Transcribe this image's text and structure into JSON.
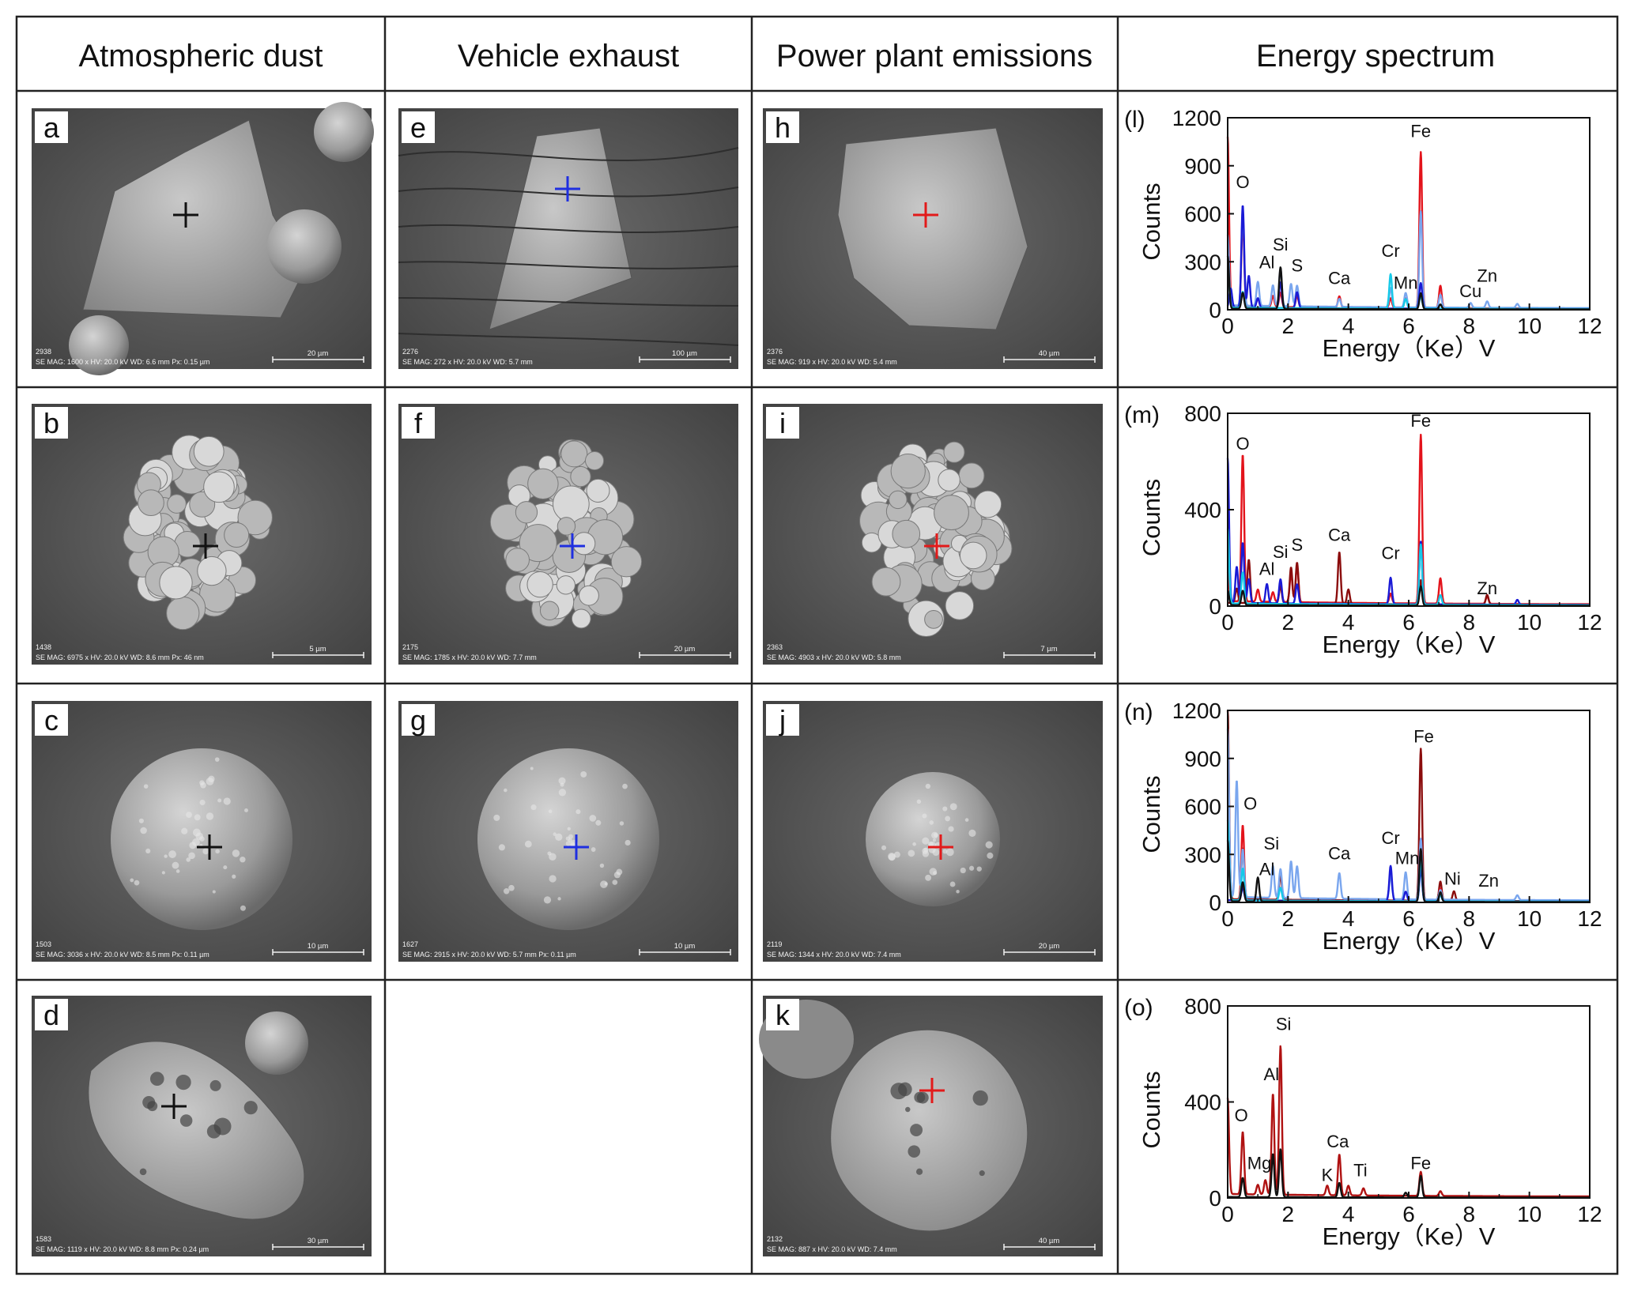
{
  "headers": [
    "Atmospheric dust",
    "Vehicle exhaust",
    "Power plant emissions",
    "Energy spectrum"
  ],
  "colors": {
    "grid": "#222222",
    "cross_dust": "#111111",
    "cross_vehicle": "#1f2fe0",
    "cross_power": "#e21a1a",
    "sem_bg": "#5c5c5c"
  },
  "panels": [
    {
      "id": "a",
      "col": 0,
      "row": 0,
      "shape": "angular",
      "cross": "dust",
      "number": "2938",
      "meta": "SE MAG: 1600 x HV: 20.0 kV  WD: 6.6 mm  Px: 0.15 µm",
      "scale": "20 µm"
    },
    {
      "id": "b",
      "col": 0,
      "row": 1,
      "shape": "cluster",
      "cross": "dust",
      "number": "1438",
      "meta": "SE MAG: 6975 x HV: 20.0 kV  WD: 8.6 mm  Px: 46 nm",
      "scale": "5 µm"
    },
    {
      "id": "c",
      "col": 0,
      "row": 2,
      "shape": "sphere",
      "cross": "dust",
      "number": "1503",
      "meta": "SE MAG: 3036 x HV: 20.0 kV  WD: 8.5 mm  Px: 0.11 µm",
      "scale": "10 µm"
    },
    {
      "id": "d",
      "col": 0,
      "row": 3,
      "shape": "porous",
      "cross": "dust",
      "number": "1583",
      "meta": "SE  MAG: 1119 x  HV: 20.0 kV   WD: 8.8 mm   Px: 0.24 µm",
      "scale": "30 µm"
    },
    {
      "id": "e",
      "col": 1,
      "row": 0,
      "shape": "triangle",
      "cross": "vehicle",
      "number": "2276",
      "meta": "SE MAG: 272 x HV: 20.0 kV  WD: 5.7 mm",
      "scale": "100 µm"
    },
    {
      "id": "f",
      "col": 1,
      "row": 1,
      "shape": "cluster",
      "cross": "vehicle",
      "number": "2175",
      "meta": "SE MAG: 1785 x HV: 20.0 kV  WD: 7.7 mm",
      "scale": "20 µm"
    },
    {
      "id": "g",
      "col": 1,
      "row": 2,
      "shape": "sphere",
      "cross": "vehicle",
      "number": "1627",
      "meta": "SE MAG: 2915 x HV: 20.0 kV  WD: 5.7 mm  Px: 0.11 µm",
      "scale": "10 µm"
    },
    {
      "id": "h",
      "col": 2,
      "row": 0,
      "shape": "block",
      "cross": "power",
      "number": "2376",
      "meta": "SE MAG: 919 x HV: 20.0 kV  WD: 5.4 mm",
      "scale": "40 µm"
    },
    {
      "id": "i",
      "col": 2,
      "row": 1,
      "shape": "cluster",
      "cross": "power",
      "number": "2363",
      "meta": "SE MAG: 4903 x HV: 20.0 kV  WD: 5.8 mm",
      "scale": "7 µm"
    },
    {
      "id": "j",
      "col": 2,
      "row": 2,
      "shape": "sphere",
      "cross": "power",
      "number": "2119",
      "meta": "SE MAG: 1344 x HV: 20.0 kV  WD: 7.4 mm",
      "scale": "20 µm"
    },
    {
      "id": "k",
      "col": 2,
      "row": 3,
      "shape": "porous",
      "cross": "power",
      "number": "2132",
      "meta": "SE MAG: 887 x HV: 20.0 kV  WD: 7.4 mm",
      "scale": "40 µm"
    }
  ],
  "chart_data": [
    {
      "type": "line",
      "panel_label": "(l)",
      "xlabel": "Energy（Ke）V",
      "ylabel": "Counts",
      "xlim": [
        0,
        12
      ],
      "ylim": [
        0,
        1200
      ],
      "xticks": [
        0,
        2,
        4,
        6,
        8,
        10,
        12
      ],
      "yticks": [
        0,
        300,
        600,
        900,
        1200
      ],
      "annotations": [
        {
          "text": "O",
          "x": 0.5,
          "y": 760
        },
        {
          "text": "Si",
          "x": 1.75,
          "y": 370
        },
        {
          "text": "Al",
          "x": 1.3,
          "y": 260
        },
        {
          "text": "S",
          "x": 2.3,
          "y": 240
        },
        {
          "text": "Ca",
          "x": 3.7,
          "y": 160
        },
        {
          "text": "Cr",
          "x": 5.4,
          "y": 330
        },
        {
          "text": "Mn",
          "x": 5.9,
          "y": 130
        },
        {
          "text": "Fe",
          "x": 6.4,
          "y": 1080
        },
        {
          "text": "Cu",
          "x": 8.05,
          "y": 80
        },
        {
          "text": "Zn",
          "x": 8.6,
          "y": 175
        }
      ],
      "series": [
        {
          "color": "#e3131b",
          "baseline": 15,
          "peaks": [
            [
              0.0,
              1060
            ],
            [
              0.5,
              530
            ],
            [
              1.0,
              50
            ],
            [
              1.5,
              70
            ],
            [
              1.75,
              90
            ],
            [
              2.3,
              70
            ],
            [
              3.7,
              70
            ],
            [
              5.4,
              60
            ],
            [
              5.9,
              60
            ],
            [
              6.4,
              975
            ],
            [
              7.05,
              140
            ]
          ]
        },
        {
          "color": "#7aa6ee",
          "baseline": 20,
          "peaks": [
            [
              0.0,
              440
            ],
            [
              0.5,
              580
            ],
            [
              1.0,
              150
            ],
            [
              1.5,
              130
            ],
            [
              1.75,
              230
            ],
            [
              2.1,
              140
            ],
            [
              2.3,
              130
            ],
            [
              3.7,
              50
            ],
            [
              5.4,
              120
            ],
            [
              5.9,
              90
            ],
            [
              6.4,
              600
            ],
            [
              7.05,
              80
            ],
            [
              8.05,
              30
            ],
            [
              8.6,
              40
            ],
            [
              9.6,
              25
            ]
          ]
        },
        {
          "color": "#1a1ad6",
          "baseline": 10,
          "peaks": [
            [
              0.1,
              120
            ],
            [
              0.5,
              640
            ],
            [
              0.7,
              200
            ],
            [
              1.0,
              60
            ],
            [
              1.75,
              160
            ],
            [
              2.3,
              100
            ],
            [
              6.4,
              160
            ]
          ]
        },
        {
          "color": "#15c9e8",
          "baseline": 10,
          "peaks": [
            [
              0.0,
              300
            ],
            [
              0.5,
              100
            ],
            [
              5.4,
              215
            ],
            [
              5.9,
              60
            ],
            [
              6.4,
              80
            ]
          ]
        },
        {
          "color": "#111111",
          "baseline": 5,
          "peaks": [
            [
              0.0,
              330
            ],
            [
              0.5,
              100
            ],
            [
              1.75,
              260
            ],
            [
              6.4,
              100
            ],
            [
              7.05,
              30
            ]
          ]
        }
      ]
    },
    {
      "type": "line",
      "panel_label": "(m)",
      "xlabel": "Energy（Ke）V",
      "ylabel": "Counts",
      "xlim": [
        0,
        12
      ],
      "ylim": [
        0,
        800
      ],
      "xticks": [
        0,
        2,
        4,
        6,
        8,
        10,
        12
      ],
      "yticks": [
        0,
        400,
        800
      ],
      "annotations": [
        {
          "text": "O",
          "x": 0.5,
          "y": 650
        },
        {
          "text": "Al",
          "x": 1.3,
          "y": 130
        },
        {
          "text": "Si",
          "x": 1.75,
          "y": 200
        },
        {
          "text": "S",
          "x": 2.3,
          "y": 230
        },
        {
          "text": "Ca",
          "x": 3.7,
          "y": 270
        },
        {
          "text": "Cr",
          "x": 5.4,
          "y": 195
        },
        {
          "text": "Fe",
          "x": 6.4,
          "y": 745
        },
        {
          "text": "Zn",
          "x": 8.6,
          "y": 50
        }
      ],
      "series": [
        {
          "color": "#e3131b",
          "baseline": 15,
          "peaks": [
            [
              0.0,
              120
            ],
            [
              0.5,
              610
            ],
            [
              1.0,
              50
            ],
            [
              1.5,
              40
            ],
            [
              1.75,
              70
            ],
            [
              2.1,
              120
            ],
            [
              2.3,
              150
            ],
            [
              5.4,
              40
            ],
            [
              6.4,
              700
            ],
            [
              7.05,
              105
            ],
            [
              8.6,
              30
            ]
          ]
        },
        {
          "color": "#8b0d0d",
          "baseline": 10,
          "peaks": [
            [
              0.3,
              60
            ],
            [
              0.7,
              180
            ],
            [
              1.75,
              70
            ],
            [
              2.1,
              150
            ],
            [
              2.3,
              170
            ],
            [
              3.7,
              215
            ],
            [
              4.0,
              60
            ],
            [
              6.4,
              100
            ],
            [
              8.6,
              40
            ]
          ]
        },
        {
          "color": "#1a1ad6",
          "baseline": 10,
          "peaks": [
            [
              0.0,
              600
            ],
            [
              0.3,
              150
            ],
            [
              0.5,
              250
            ],
            [
              0.7,
              100
            ],
            [
              1.3,
              80
            ],
            [
              1.75,
              100
            ],
            [
              2.3,
              80
            ],
            [
              5.4,
              110
            ],
            [
              6.4,
              260
            ],
            [
              9.6,
              20
            ]
          ]
        },
        {
          "color": "#15c9e8",
          "baseline": 8,
          "peaks": [
            [
              0.0,
              310
            ],
            [
              0.5,
              130
            ],
            [
              6.4,
              250
            ],
            [
              7.05,
              40
            ]
          ]
        },
        {
          "color": "#111111",
          "baseline": 3,
          "peaks": [
            [
              0.0,
              60
            ],
            [
              0.5,
              60
            ],
            [
              6.4,
              80
            ]
          ]
        }
      ]
    },
    {
      "type": "line",
      "panel_label": "(n)",
      "xlabel": "Energy（Ke）V",
      "ylabel": "Counts",
      "xlim": [
        0,
        12
      ],
      "ylim": [
        0,
        1200
      ],
      "xticks": [
        0,
        2,
        4,
        6,
        8,
        10,
        12
      ],
      "yticks": [
        0,
        300,
        600,
        900,
        1200
      ],
      "annotations": [
        {
          "text": "O",
          "x": 0.75,
          "y": 580
        },
        {
          "text": "Si",
          "x": 1.45,
          "y": 330
        },
        {
          "text": "Al",
          "x": 1.3,
          "y": 170
        },
        {
          "text": "Ca",
          "x": 3.7,
          "y": 270
        },
        {
          "text": "Cr",
          "x": 5.4,
          "y": 365
        },
        {
          "text": "Mn",
          "x": 5.95,
          "y": 240
        },
        {
          "text": "Fe",
          "x": 6.5,
          "y": 1000
        },
        {
          "text": "Ni",
          "x": 7.45,
          "y": 110
        },
        {
          "text": "Zn",
          "x": 8.65,
          "y": 100
        }
      ],
      "series": [
        {
          "color": "#8b0d0d",
          "baseline": 15,
          "peaks": [
            [
              0.0,
              1190
            ],
            [
              0.5,
              320
            ],
            [
              1.75,
              150
            ],
            [
              6.4,
              950
            ],
            [
              7.05,
              120
            ],
            [
              7.5,
              60
            ]
          ]
        },
        {
          "color": "#e3131b",
          "baseline": 10,
          "peaks": [
            [
              0.5,
              470
            ],
            [
              6.4,
              280
            ],
            [
              7.05,
              80
            ]
          ]
        },
        {
          "color": "#7aa6ee",
          "baseline": 25,
          "peaks": [
            [
              0.0,
              1050
            ],
            [
              0.3,
              730
            ],
            [
              0.5,
              300
            ],
            [
              1.5,
              200
            ],
            [
              1.75,
              180
            ],
            [
              2.1,
              230
            ],
            [
              2.3,
              200
            ],
            [
              3.7,
              160
            ],
            [
              5.4,
              150
            ],
            [
              5.9,
              170
            ],
            [
              6.4,
              380
            ],
            [
              7.05,
              60
            ],
            [
              9.6,
              30
            ]
          ]
        },
        {
          "color": "#1a1ad6",
          "baseline": 10,
          "peaks": [
            [
              0.5,
              80
            ],
            [
              5.4,
              220
            ],
            [
              5.9,
              60
            ],
            [
              6.4,
              200
            ],
            [
              7.05,
              40
            ]
          ]
        },
        {
          "color": "#15c9e8",
          "baseline": 10,
          "peaks": [
            [
              0.0,
              500
            ],
            [
              0.5,
              200
            ],
            [
              1.75,
              80
            ],
            [
              6.4,
              260
            ],
            [
              7.05,
              40
            ]
          ]
        },
        {
          "color": "#111111",
          "baseline": 5,
          "peaks": [
            [
              0.0,
              380
            ],
            [
              0.5,
              120
            ],
            [
              1.0,
              150
            ],
            [
              6.4,
              330
            ],
            [
              7.05,
              60
            ]
          ]
        }
      ]
    },
    {
      "type": "line",
      "panel_label": "(o)",
      "xlabel": "Energy（Ke）V",
      "ylabel": "Counts",
      "xlim": [
        0,
        12
      ],
      "ylim": [
        0,
        800
      ],
      "xticks": [
        0,
        2,
        4,
        6,
        8,
        10,
        12
      ],
      "yticks": [
        0,
        400,
        800
      ],
      "annotations": [
        {
          "text": "O",
          "x": 0.45,
          "y": 320
        },
        {
          "text": "Mg",
          "x": 1.05,
          "y": 120
        },
        {
          "text": "Al",
          "x": 1.45,
          "y": 490
        },
        {
          "text": "Si",
          "x": 1.85,
          "y": 700
        },
        {
          "text": "K",
          "x": 3.3,
          "y": 70
        },
        {
          "text": "Ca",
          "x": 3.65,
          "y": 210
        },
        {
          "text": "Ti",
          "x": 4.4,
          "y": 90
        },
        {
          "text": "Fe",
          "x": 6.4,
          "y": 120
        }
      ],
      "series": [
        {
          "color": "#b01212",
          "baseline": 12,
          "peaks": [
            [
              0.0,
              400
            ],
            [
              0.5,
              260
            ],
            [
              1.0,
              40
            ],
            [
              1.25,
              60
            ],
            [
              1.5,
              420
            ],
            [
              1.75,
              620
            ],
            [
              3.3,
              40
            ],
            [
              3.7,
              170
            ],
            [
              4.0,
              40
            ],
            [
              4.5,
              30
            ],
            [
              6.4,
              100
            ],
            [
              7.05,
              20
            ]
          ]
        },
        {
          "color": "#111111",
          "baseline": 3,
          "peaks": [
            [
              0.5,
              80
            ],
            [
              1.5,
              180
            ],
            [
              1.75,
              200
            ],
            [
              3.7,
              60
            ],
            [
              5.9,
              20
            ],
            [
              6.4,
              90
            ]
          ]
        }
      ]
    }
  ]
}
